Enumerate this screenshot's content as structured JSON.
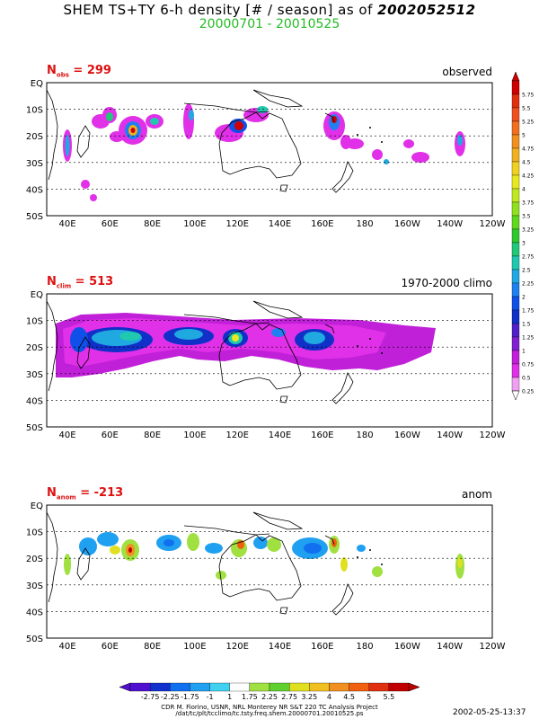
{
  "title_prefix": "SHEM TS+TY 6-h density [# / season] as of",
  "title_date": "2002052512",
  "period": "20000701 - 20010525",
  "lat_ticks": [
    "EQ",
    "10S",
    "20S",
    "30S",
    "40S",
    "50S"
  ],
  "lon_ticks": [
    "40E",
    "60E",
    "80E",
    "100E",
    "120E",
    "140E",
    "160E",
    "180",
    "160W",
    "140W",
    "120W"
  ],
  "panels": [
    {
      "n_label": "N",
      "n_sub": "obs",
      "n_value": "= 299",
      "label": "observed"
    },
    {
      "n_label": "N",
      "n_sub": "clim",
      "n_value": "= 513",
      "label": "1970-2000 climo"
    },
    {
      "n_label": "N",
      "n_sub": "anom",
      "n_value": "= -213",
      "label": "anom"
    }
  ],
  "right_colorbar": {
    "labels": [
      "5.75",
      "5.5",
      "5.25",
      "5",
      "4.75",
      "4.5",
      "4.25",
      "4",
      "3.75",
      "3.5",
      "3.25",
      "3",
      "2.75",
      "2.5",
      "2.25",
      "2",
      "1.75",
      "1.5",
      "1.25",
      "1",
      "0.75",
      "0.5",
      "0.25"
    ],
    "colors": [
      "#d00000",
      "#e03010",
      "#f05020",
      "#f07020",
      "#f09020",
      "#f0b020",
      "#f0d020",
      "#e8e820",
      "#c0e820",
      "#90e020",
      "#60d820",
      "#30c830",
      "#20c878",
      "#20c8b0",
      "#20a8e0",
      "#2080f0",
      "#1050e8",
      "#1030c8",
      "#5020c8",
      "#8020d0",
      "#c020d8",
      "#e030e8",
      "#f0a0f0"
    ]
  },
  "bottom_colorbar": {
    "labels": [
      "-2.75",
      "-2.25",
      "-1.75",
      "-1",
      "1",
      "1.75",
      "2.25",
      "2.75",
      "3.25",
      "4",
      "4.5",
      "5",
      "5.5"
    ],
    "colors": [
      "#5010d0",
      "#1030d0",
      "#1070f0",
      "#20a0f0",
      "#40d0f0",
      "#ffffff",
      "#a0e040",
      "#60d030",
      "#e0e020",
      "#f0c020",
      "#f09020",
      "#f06010",
      "#e03010",
      "#c00000"
    ]
  },
  "credit_lines": [
    "CDR M. Fiorino, USNR, NRL Monterey NR S&T 220 TC Analysis Project",
    "/dat/tc/plt/tcclimo/tc.tsty.freq.shem.20000701.20010525.ps"
  ],
  "timestamp": "2002-05-25-13:37"
}
